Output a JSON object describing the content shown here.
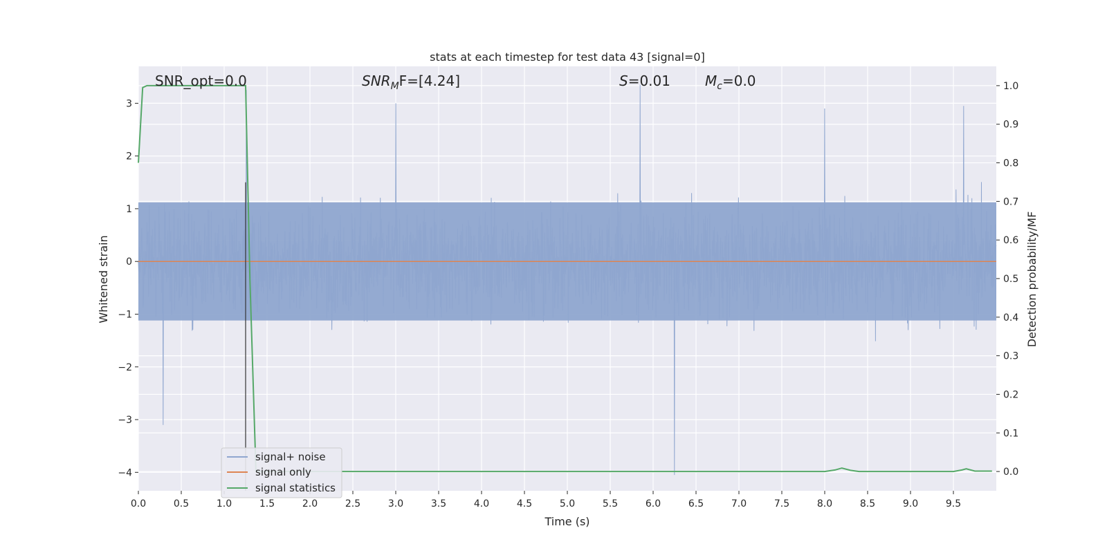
{
  "chart_data": {
    "type": "line",
    "title": "stats at each timestep for test data 43 [signal=0]",
    "xlabel": "Time (s)",
    "ylabel": "Whitened strain",
    "ylabel_right": "Detection probability/MF",
    "xlim": [
      0,
      10
    ],
    "ylim": [
      -4.35,
      3.7
    ],
    "ylim_right": [
      -0.05,
      1.05
    ],
    "x_ticks": [
      "0.0",
      "0.5",
      "1.0",
      "1.5",
      "2.0",
      "2.5",
      "3.0",
      "3.5",
      "4.0",
      "4.5",
      "5.0",
      "5.5",
      "6.0",
      "6.5",
      "7.0",
      "7.5",
      "8.0",
      "8.5",
      "9.0",
      "9.5"
    ],
    "x_tick_values": [
      0,
      0.5,
      1,
      1.5,
      2,
      2.5,
      3,
      3.5,
      4,
      4.5,
      5,
      5.5,
      6,
      6.5,
      7,
      7.5,
      8,
      8.5,
      9,
      9.5
    ],
    "y_ticks": [
      "3",
      "2",
      "1",
      "0",
      "−1",
      "−2",
      "−3",
      "−4"
    ],
    "y_tick_values": [
      3,
      2,
      1,
      0,
      -1,
      -2,
      -3,
      -4
    ],
    "y_ticks_right": [
      "1.0",
      "0.9",
      "0.8",
      "0.7",
      "0.6",
      "0.5",
      "0.4",
      "0.3",
      "0.2",
      "0.1",
      "0.0"
    ],
    "y_tick_values_right": [
      1.0,
      0.9,
      0.8,
      0.7,
      0.6,
      0.5,
      0.4,
      0.3,
      0.2,
      0.1,
      0.0
    ],
    "grid": true,
    "legend_position": "lower-left",
    "annotations": {
      "snr_opt": "SNR_opt=0.0",
      "snr_mf_prefix": "SNR",
      "snr_mf_sub": "M",
      "snr_mf_suffix": "F=[4.24]",
      "s_prefix": "S",
      "s_value": "=0.01",
      "mc_prefix": "M",
      "mc_sub": "c",
      "mc_value": "=0.0"
    },
    "series": [
      {
        "name": "signal+ noise",
        "color": "#8fa6cf",
        "description_values": {
          "type": "noise",
          "envelope_typical": [
            -1.1,
            1.1
          ],
          "peaks": [
            {
              "x": 1.26,
              "y": 3.25
            },
            {
              "x": 5.85,
              "y": 3.35
            },
            {
              "x": 6.25,
              "y": -4.05
            },
            {
              "x": 0.29,
              "y": -3.1
            },
            {
              "x": 3.0,
              "y": 3.0
            },
            {
              "x": 8.0,
              "y": 2.9
            },
            {
              "x": 9.62,
              "y": 2.95
            }
          ]
        }
      },
      {
        "name": "signal only",
        "color": "#dd8452",
        "x": [
          0,
          10
        ],
        "y": [
          0,
          0
        ]
      },
      {
        "name": "signal statistics",
        "color": "#55a868",
        "axis": "right",
        "x": [
          0,
          0.05,
          0.1,
          0.2,
          1.2,
          1.25,
          1.3,
          1.37,
          1.4,
          2.0,
          8.0,
          8.12,
          8.2,
          8.3,
          8.4,
          9.5,
          9.6,
          9.65,
          9.75,
          9.95
        ],
        "y": [
          0.8,
          0.995,
          1.0,
          1.0,
          1.0,
          1.0,
          0.5,
          0.0,
          0.0,
          0.0,
          0.0,
          0.004,
          0.009,
          0.003,
          0.0,
          0.0,
          0.004,
          0.007,
          0.001,
          0.001
        ]
      },
      {
        "name": "",
        "color": "#333333",
        "kind": "vertical_marker",
        "x": 1.25,
        "y_range": [
          -4.35,
          1.5
        ]
      }
    ]
  }
}
